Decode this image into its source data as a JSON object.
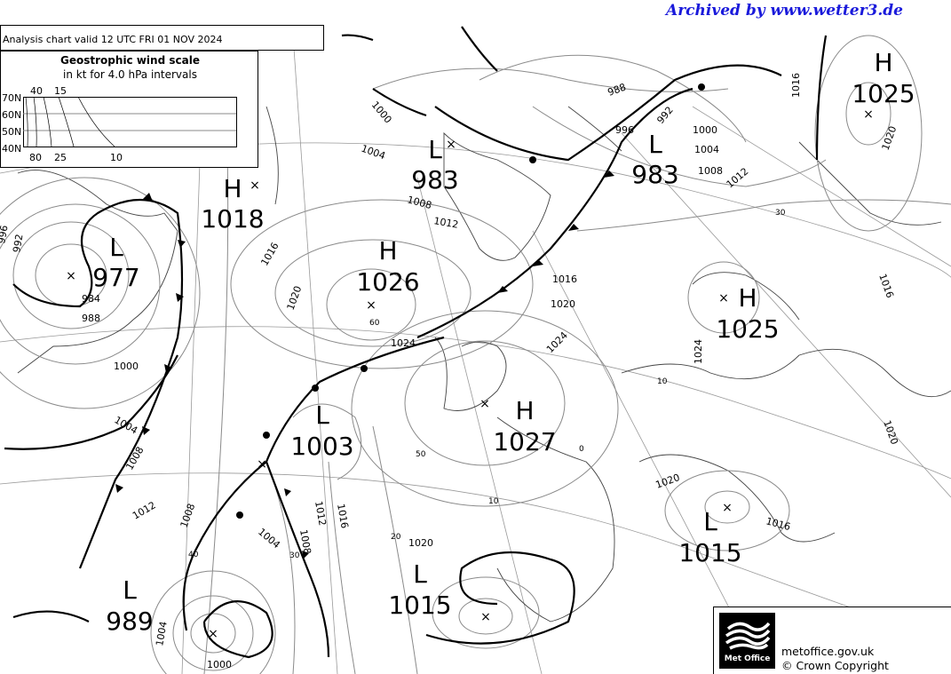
{
  "archive_label": "Archived by www.wetter3.de",
  "valid_text": "Analysis chart  valid 12 UTC FRI 01  NOV 2024",
  "wind_scale": {
    "title": "Geostrophic wind scale",
    "subtitle": "in kt for 4.0 hPa intervals",
    "lat_labels": [
      "70N",
      "60N",
      "50N",
      "40N"
    ],
    "top_labels": [
      "40",
      "15"
    ],
    "bottom_labels": [
      "80",
      "25",
      "10"
    ]
  },
  "pressure_centres": [
    {
      "type": "H",
      "value": "1025"
    },
    {
      "type": "H",
      "value": "1018"
    },
    {
      "type": "L",
      "value": "977"
    },
    {
      "type": "H",
      "value": "1026"
    },
    {
      "type": "L",
      "value": "983"
    },
    {
      "type": "L",
      "value": "983"
    },
    {
      "type": "H",
      "value": "1025"
    },
    {
      "type": "L",
      "value": "1003"
    },
    {
      "type": "H",
      "value": "1027"
    },
    {
      "type": "L",
      "value": "1015"
    },
    {
      "type": "L",
      "value": "1015"
    },
    {
      "type": "L",
      "value": "989"
    }
  ],
  "isobar_labels": [
    "996",
    "992",
    "984",
    "988",
    "1000",
    "1004",
    "1008",
    "1012",
    "1016",
    "1020",
    "1024",
    "1000",
    "1004",
    "1008",
    "1012",
    "1016",
    "1020",
    "1024",
    "988",
    "992",
    "996",
    "1000",
    "1004",
    "1008",
    "1012",
    "1016",
    "1020",
    "1024",
    "1016",
    "1020",
    "1016",
    "1020",
    "1004",
    "1008",
    "1012",
    "1016",
    "1020",
    "1008",
    "1004",
    "1000"
  ],
  "latitude_labels": [
    "60",
    "50",
    "40",
    "30",
    "20",
    "10",
    "0",
    "30",
    "10"
  ],
  "colors": {
    "archive": "#1a1adb",
    "isobar": "#8a8a8a",
    "front": "#000000"
  },
  "footer": {
    "logo_text": "Met Office",
    "site": "metoffice.gov.uk",
    "copyright": "© Crown Copyright"
  }
}
